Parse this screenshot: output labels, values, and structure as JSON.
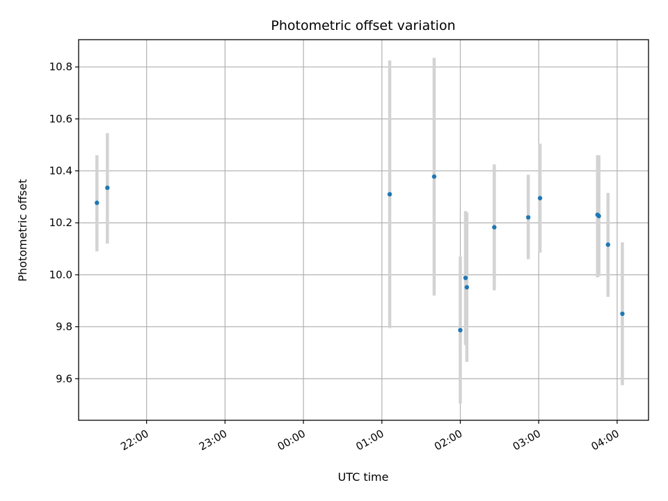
{
  "chart_data": {
    "type": "scatter",
    "title": "Photometric offset variation",
    "xlabel": "UTC time",
    "ylabel": "Photometric offset",
    "x_tick_labels": [
      "22:00",
      "23:00",
      "00:00",
      "01:00",
      "02:00",
      "03:00",
      "04:00"
    ],
    "y_ticks": [
      9.6,
      9.8,
      10.0,
      10.2,
      10.4,
      10.6,
      10.8
    ],
    "y_tick_labels": [
      "9.6",
      "9.8",
      "10.0",
      "10.2",
      "10.4",
      "10.6",
      "10.8"
    ],
    "xlim": [
      "21:08",
      "04:24"
    ],
    "ylim": [
      9.44,
      10.905
    ],
    "grid": true,
    "marker_color": "#1f77b4",
    "errorbar_color": "#d3d3d3",
    "points": [
      {
        "time": "21:22",
        "y": 10.277,
        "ylow": 10.09,
        "yhigh": 10.46
      },
      {
        "time": "21:30",
        "y": 10.335,
        "ylow": 10.12,
        "yhigh": 10.545
      },
      {
        "time": "01:06",
        "y": 10.31,
        "ylow": 9.795,
        "yhigh": 10.825
      },
      {
        "time": "01:40",
        "y": 10.378,
        "ylow": 9.92,
        "yhigh": 10.835
      },
      {
        "time": "02:00",
        "y": 9.787,
        "ylow": 9.505,
        "yhigh": 10.07
      },
      {
        "time": "02:04",
        "y": 9.988,
        "ylow": 9.73,
        "yhigh": 10.245
      },
      {
        "time": "02:05",
        "y": 9.952,
        "ylow": 9.665,
        "yhigh": 10.24
      },
      {
        "time": "02:26",
        "y": 10.183,
        "ylow": 9.94,
        "yhigh": 10.425
      },
      {
        "time": "02:52",
        "y": 10.221,
        "ylow": 10.06,
        "yhigh": 10.385
      },
      {
        "time": "03:01",
        "y": 10.295,
        "ylow": 10.085,
        "yhigh": 10.505
      },
      {
        "time": "03:45",
        "y": 10.231,
        "ylow": 9.99,
        "yhigh": 10.46
      },
      {
        "time": "03:46",
        "y": 10.226,
        "ylow": 9.995,
        "yhigh": 10.46
      },
      {
        "time": "03:53",
        "y": 10.116,
        "ylow": 9.915,
        "yhigh": 10.315
      },
      {
        "time": "04:04",
        "y": 9.85,
        "ylow": 9.575,
        "yhigh": 10.125
      }
    ]
  }
}
